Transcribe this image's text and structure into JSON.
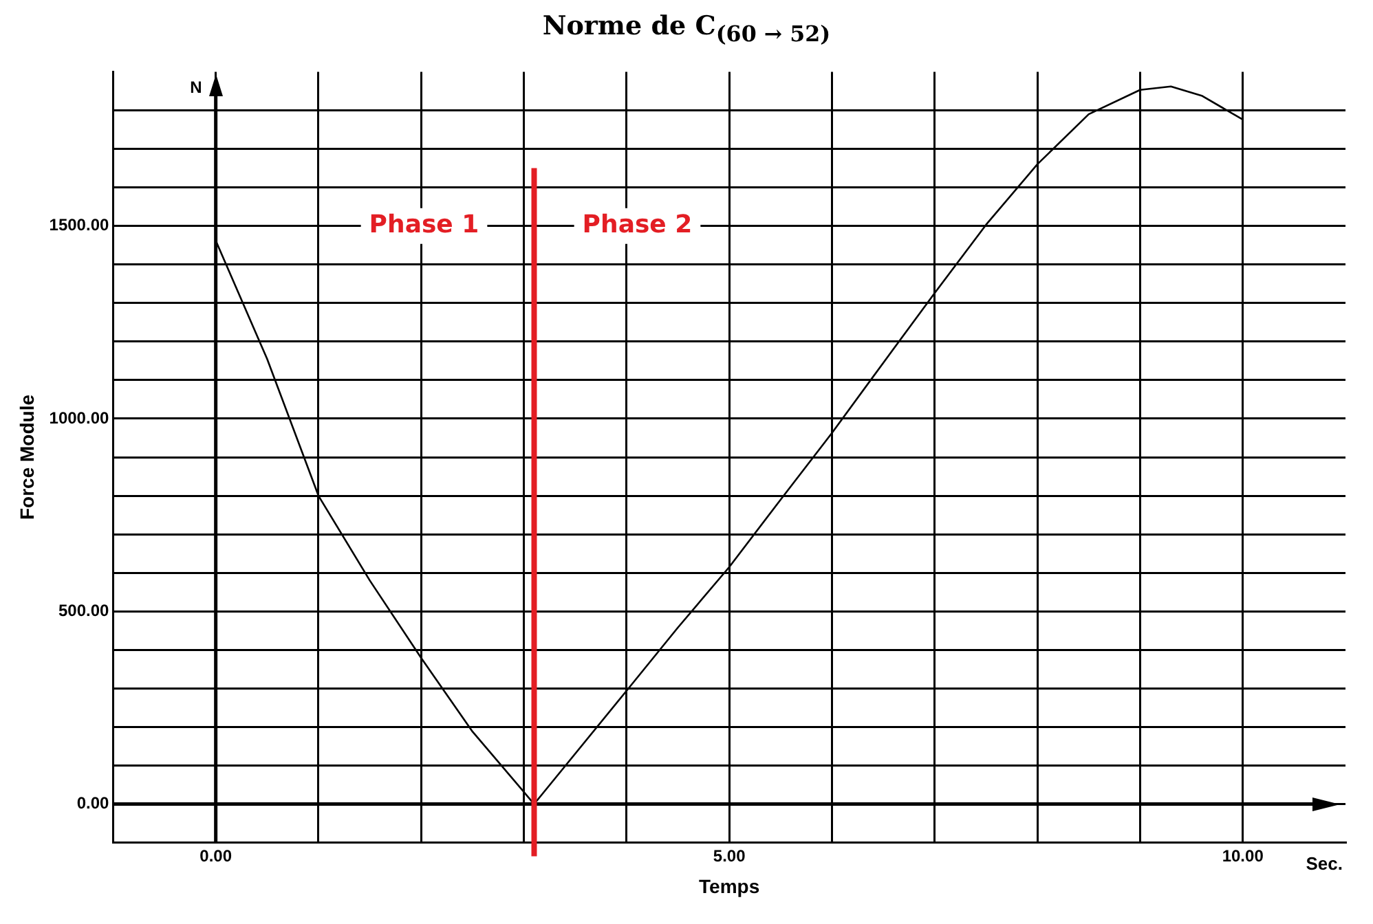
{
  "chart_data": {
    "type": "line",
    "title": "Norme de C$_{(60 → 52)}$",
    "xlabel": "Temps",
    "ylabel": "Force Module",
    "x": [
      0,
      0.5,
      1,
      1.5,
      2,
      2.5,
      3.1,
      4,
      4.5,
      5,
      5.5,
      6,
      6.5,
      7,
      7.5,
      8,
      8.5,
      9,
      9.3,
      9.6,
      10
    ],
    "series": [
      {
        "color": "#000000",
        "values": [
          1462,
          1155,
          800,
          580,
          379,
          188,
          0,
          294,
          458,
          615,
          790,
          963,
          1145,
          1326,
          1503,
          1660,
          1790,
          1853,
          1862,
          1838,
          1776
        ]
      }
    ],
    "xlim": [
      -1,
      11
    ],
    "ylim": [
      -100,
      1900
    ],
    "xticks": [
      {
        "value": 0,
        "label": "0.00"
      },
      {
        "value": 1,
        "label": null
      },
      {
        "value": 2,
        "label": null
      },
      {
        "value": 3,
        "label": null
      },
      {
        "value": 4,
        "label": null
      },
      {
        "value": 5,
        "label": "5.00"
      },
      {
        "value": 6,
        "label": null
      },
      {
        "value": 7,
        "label": null
      },
      {
        "value": 8,
        "label": null
      },
      {
        "value": 9,
        "label": null
      },
      {
        "value": 10,
        "label": "10.00"
      }
    ],
    "yticks": [
      {
        "value": 0,
        "label": "0.00"
      },
      {
        "value": 100,
        "label": null
      },
      {
        "value": 200,
        "label": null
      },
      {
        "value": 300,
        "label": null
      },
      {
        "value": 400,
        "label": null
      },
      {
        "value": 500,
        "label": "500.00"
      },
      {
        "value": 600,
        "label": null
      },
      {
        "value": 700,
        "label": null
      },
      {
        "value": 800,
        "label": null
      },
      {
        "value": 900,
        "label": null
      },
      {
        "value": 1000,
        "label": "1000.00"
      },
      {
        "value": 1100,
        "label": null
      },
      {
        "value": 1200,
        "label": null
      },
      {
        "value": 1300,
        "label": null
      },
      {
        "value": 1400,
        "label": null
      },
      {
        "value": 1500,
        "label": "1500.00"
      },
      {
        "value": 1600,
        "label": null
      },
      {
        "value": 1700,
        "label": null
      },
      {
        "value": 1800,
        "label": null
      }
    ],
    "ref_lines": [
      {
        "axis": "x",
        "value": 3.1,
        "color": "#e31e24"
      }
    ],
    "annotations": [
      "Phase 1",
      "Phase 2",
      "N",
      "Sec."
    ],
    "grid": true,
    "marker": "none",
    "line_style": "solid"
  }
}
